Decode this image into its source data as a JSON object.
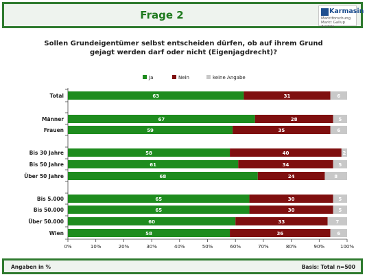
{
  "header": {
    "title": "Frage 2"
  },
  "logo": {
    "name": "Karmasin",
    "sub_line1": "Marktforschung",
    "sub_line2": "Markt Gallup Austria"
  },
  "question": {
    "line1": "Sollen Grundeigentümer selbst entscheiden dürfen, ob auf ihrem Grund",
    "line2": "gejagt werden darf oder nicht (Eigenjagdrecht)?"
  },
  "footer": {
    "left": "Angaben in %",
    "right": "Basis: Total n=500"
  },
  "colors": {
    "ja": "#1e8c1e",
    "nein": "#7f0f0f",
    "keine_angabe": "#c8c8c8"
  },
  "chart_data": {
    "type": "bar",
    "orientation": "horizontal",
    "stacked": true,
    "legend_position": "top",
    "grid": false,
    "xlim": [
      0,
      100
    ],
    "x_ticks": [
      "0%",
      "10%",
      "20%",
      "30%",
      "40%",
      "50%",
      "60%",
      "70%",
      "80%",
      "90%",
      "100%"
    ],
    "categories": [
      "Total",
      "Männer",
      "Frauen",
      "Bis 30 Jahre",
      "Bis 50 Jahre",
      "Über 50 Jahre",
      "Bis 5.000",
      "Bis 50.000",
      "Über 50.000",
      "Wien"
    ],
    "series": [
      {
        "name": "Ja",
        "color": "#1e8c1e",
        "values": [
          63,
          67,
          59,
          58,
          61,
          68,
          65,
          65,
          60,
          58
        ]
      },
      {
        "name": "Nein",
        "color": "#7f0f0f",
        "values": [
          31,
          28,
          35,
          40,
          34,
          24,
          30,
          30,
          33,
          36
        ]
      },
      {
        "name": "keine Angabe",
        "color": "#c8c8c8",
        "values": [
          6,
          5,
          6,
          2,
          5,
          8,
          5,
          5,
          7,
          6
        ]
      }
    ]
  }
}
